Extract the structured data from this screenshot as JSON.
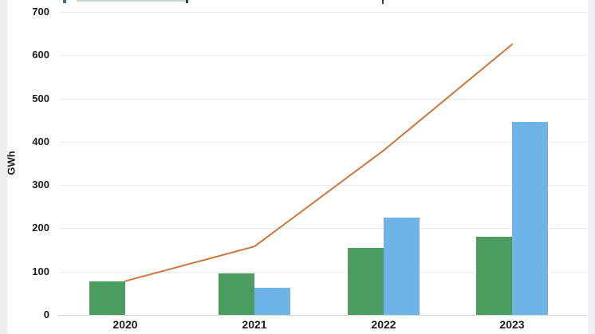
{
  "chart_data": {
    "type": "bar+line",
    "categories": [
      "2020",
      "2021",
      "2022",
      "2023"
    ],
    "series": [
      {
        "name": "green-bars",
        "type": "bar",
        "color": "#4a9d5f",
        "values": [
          78,
          95,
          155,
          180
        ]
      },
      {
        "name": "blue-bars",
        "type": "bar",
        "color": "#6db5e6",
        "values": [
          0,
          63,
          225,
          445
        ]
      },
      {
        "name": "orange-line",
        "type": "line",
        "color": "#d0753b",
        "values": [
          78,
          158,
          380,
          625
        ]
      }
    ],
    "title": "",
    "xlabel": "",
    "ylabel": "GWh",
    "yticks": [
      0,
      100,
      200,
      300,
      400,
      500,
      600,
      700
    ],
    "ylim": [
      0,
      700
    ],
    "grid": true,
    "legend_position": "cropped-above-frame"
  }
}
